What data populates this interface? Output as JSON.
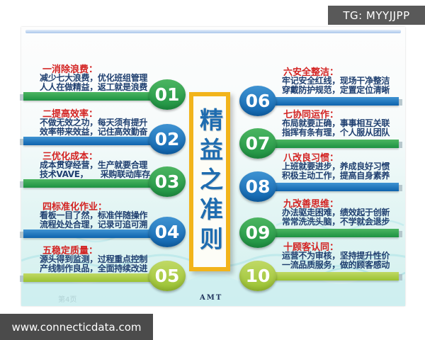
{
  "header": {
    "tg_label": "TG: MYYJJPP"
  },
  "footer": {
    "website": "www.connecticdata.com",
    "brand": "AMT",
    "page_watermark": "第4页"
  },
  "center": {
    "title": "精益之准则"
  },
  "colors": {
    "title_red": "#d32221",
    "body_blue": "#1f3f70",
    "green_light": "#4cb561",
    "green_dark": "#1d9242",
    "blue_light": "#3f93d2",
    "blue_dark": "#0e63ad",
    "lime_light": "#c0d965",
    "lime_dark": "#9ac232",
    "center_blue": "#1e6cb0",
    "frame_yellow": "#f2b41a"
  },
  "items": [
    {
      "num": "01",
      "side": "left",
      "color": "green",
      "title": "一消除浪费：",
      "line1": "减少七大浪费，优化班组管理",
      "line2": "人人在做精益，返工就是浪费"
    },
    {
      "num": "02",
      "side": "left",
      "color": "blue",
      "title": "二提高效率：",
      "line1": "不做无效之功，每天须有提升",
      "line2": "效率带来效益，记住高效勤奋"
    },
    {
      "num": "03",
      "side": "left",
      "color": "green",
      "title": "三优化成本：",
      "line1": "成本贯穿经营，生产就要合理",
      "line2": "技术VAVE，　　采购联动库存"
    },
    {
      "num": "04",
      "side": "left",
      "color": "blue",
      "title": "四标准化作业：",
      "line1": "看板一目了然，标准伴随操作",
      "line2": "流程处处合理，记录可追可溯"
    },
    {
      "num": "05",
      "side": "left",
      "color": "lime",
      "title": "五稳定质量：",
      "line1": "源头得到监测，过程重点控制",
      "line2": "产线制作良品，全面持续改进"
    },
    {
      "num": "06",
      "side": "right",
      "color": "blue",
      "title": "六安全整洁：",
      "line1": "牢记安全红线，现场干净整洁",
      "line2": "穿戴防护规范，定置定位清晰"
    },
    {
      "num": "07",
      "side": "right",
      "color": "green",
      "title": "七协同运作：",
      "line1": "布局就要正确，事事相互关联",
      "line2": "指挥有条有理，个人服从团队"
    },
    {
      "num": "08",
      "side": "right",
      "color": "blue",
      "title": "八改良习惯：",
      "line1": "上班就要进步，养成良好习惯",
      "line2": "积极主动工作，提高自身素养"
    },
    {
      "num": "09",
      "side": "right",
      "color": "green",
      "title": "九改善思维：",
      "line1": "办法驱走困难，绩效起于创新",
      "line2": "常常洗洗头脑，不学就会退步"
    },
    {
      "num": "10",
      "side": "right",
      "color": "lime",
      "title": "十顾客认同：",
      "line1": "运营不为审核，坚持提升性价",
      "line2": "一流品质服务，做的顾客感动"
    }
  ]
}
